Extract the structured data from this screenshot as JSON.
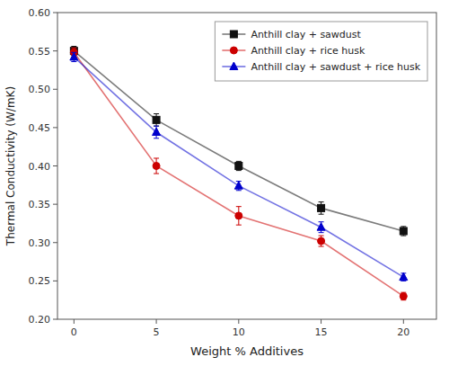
{
  "chart_data": {
    "type": "line",
    "x": [
      0,
      5,
      10,
      15,
      20
    ],
    "series": [
      {
        "name": "Anthill clay + sawdust",
        "color": "#111111",
        "marker": "square",
        "values": [
          0.55,
          0.46,
          0.4,
          0.345,
          0.315
        ],
        "errors": [
          0.006,
          0.008,
          0.006,
          0.008,
          0.006
        ]
      },
      {
        "name": "Anthill clay + rice husk",
        "color": "#cc0000",
        "marker": "circle",
        "values": [
          0.548,
          0.4,
          0.335,
          0.302,
          0.23
        ],
        "errors": [
          0.006,
          0.01,
          0.012,
          0.007,
          0.005
        ]
      },
      {
        "name": "Anthill clay + sawdust + rice husk",
        "color": "#0000cc",
        "marker": "triangle",
        "values": [
          0.542,
          0.444,
          0.374,
          0.32,
          0.255
        ],
        "errors": [
          0.006,
          0.008,
          0.006,
          0.007,
          0.005
        ]
      }
    ],
    "xlabel": "Weight % Additives",
    "ylabel": "Thermal Conductivity (W/mK)",
    "xlim": [
      -1,
      22
    ],
    "ylim": [
      0.2,
      0.6
    ],
    "xticks": [
      0,
      5,
      10,
      15,
      20
    ],
    "yticks": [
      {
        "value": 0.2,
        "label": "0.20"
      },
      0.25,
      {
        "value": 0.3,
        "label": "0.30"
      },
      0.35,
      {
        "value": 0.4,
        "label": "0.40"
      },
      0.45,
      {
        "value": 0.5,
        "label": "0.50"
      },
      0.55,
      {
        "value": 0.6,
        "label": "0.60"
      }
    ],
    "legend": "upper right",
    "grid": false
  }
}
